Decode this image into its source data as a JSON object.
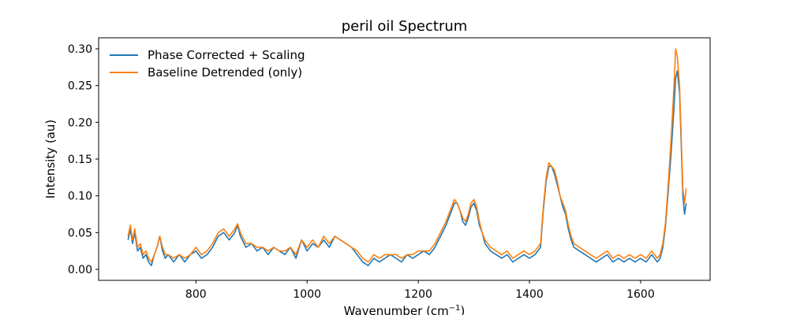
{
  "chart_data": {
    "type": "line",
    "title": "peril oil Spectrum",
    "xlabel": "Wavenumber (cm",
    "xlabel_sup": "−1",
    "xlabel_close": ")",
    "ylabel": "Intensity (au)",
    "xlim": [
      625,
      1725
    ],
    "ylim": [
      -0.015,
      0.315
    ],
    "xticks": [
      800,
      1000,
      1200,
      1400,
      1600
    ],
    "xtick_labels": [
      "800",
      "1000",
      "1200",
      "1400",
      "1600"
    ],
    "yticks": [
      0.0,
      0.05,
      0.1,
      0.15,
      0.2,
      0.25,
      0.3
    ],
    "ytick_labels": [
      "0.00",
      "0.05",
      "0.10",
      "0.15",
      "0.20",
      "0.25",
      "0.30"
    ],
    "grid": false,
    "legend_position": "top-left",
    "series": [
      {
        "name": "Phase Corrected + Scaling",
        "color": "#1f77b4",
        "x": [
          678,
          682,
          686,
          690,
          695,
          700,
          705,
          710,
          715,
          720,
          725,
          730,
          735,
          740,
          745,
          750,
          760,
          770,
          780,
          790,
          800,
          810,
          820,
          830,
          840,
          850,
          860,
          870,
          875,
          880,
          890,
          900,
          910,
          920,
          930,
          940,
          950,
          960,
          970,
          980,
          990,
          1000,
          1010,
          1020,
          1030,
          1040,
          1050,
          1060,
          1070,
          1080,
          1090,
          1100,
          1110,
          1120,
          1130,
          1140,
          1150,
          1160,
          1170,
          1180,
          1190,
          1200,
          1210,
          1220,
          1230,
          1240,
          1250,
          1260,
          1265,
          1270,
          1275,
          1280,
          1285,
          1290,
          1295,
          1300,
          1305,
          1310,
          1315,
          1320,
          1330,
          1340,
          1350,
          1360,
          1370,
          1380,
          1390,
          1400,
          1410,
          1420,
          1425,
          1430,
          1435,
          1440,
          1445,
          1450,
          1455,
          1460,
          1465,
          1470,
          1475,
          1480,
          1490,
          1500,
          1510,
          1520,
          1530,
          1540,
          1550,
          1560,
          1570,
          1580,
          1590,
          1600,
          1610,
          1620,
          1630,
          1635,
          1640,
          1645,
          1650,
          1655,
          1660,
          1663,
          1666,
          1670,
          1673,
          1676,
          1679,
          1682
        ],
        "values": [
          0.04,
          0.055,
          0.035,
          0.05,
          0.025,
          0.03,
          0.015,
          0.02,
          0.01,
          0.005,
          0.02,
          0.03,
          0.045,
          0.025,
          0.015,
          0.02,
          0.01,
          0.02,
          0.01,
          0.02,
          0.025,
          0.015,
          0.02,
          0.03,
          0.045,
          0.05,
          0.04,
          0.05,
          0.06,
          0.045,
          0.03,
          0.035,
          0.025,
          0.03,
          0.02,
          0.03,
          0.025,
          0.02,
          0.03,
          0.015,
          0.04,
          0.025,
          0.035,
          0.03,
          0.04,
          0.03,
          0.045,
          0.04,
          0.035,
          0.03,
          0.02,
          0.01,
          0.005,
          0.015,
          0.01,
          0.015,
          0.02,
          0.015,
          0.01,
          0.02,
          0.015,
          0.02,
          0.025,
          0.02,
          0.03,
          0.045,
          0.06,
          0.08,
          0.09,
          0.09,
          0.08,
          0.065,
          0.06,
          0.07,
          0.085,
          0.09,
          0.08,
          0.06,
          0.05,
          0.035,
          0.025,
          0.02,
          0.015,
          0.02,
          0.01,
          0.015,
          0.02,
          0.015,
          0.02,
          0.03,
          0.08,
          0.12,
          0.14,
          0.14,
          0.13,
          0.115,
          0.1,
          0.085,
          0.075,
          0.055,
          0.04,
          0.03,
          0.025,
          0.02,
          0.015,
          0.01,
          0.015,
          0.02,
          0.01,
          0.015,
          0.01,
          0.015,
          0.01,
          0.015,
          0.01,
          0.02,
          0.01,
          0.015,
          0.03,
          0.06,
          0.11,
          0.16,
          0.22,
          0.26,
          0.27,
          0.24,
          0.17,
          0.1,
          0.075,
          0.09
        ]
      },
      {
        "name": "Baseline Detrended (only)",
        "color": "#ff7f0e",
        "x": [
          678,
          682,
          686,
          690,
          695,
          700,
          705,
          710,
          715,
          720,
          725,
          730,
          735,
          740,
          745,
          750,
          760,
          770,
          780,
          790,
          800,
          810,
          820,
          830,
          840,
          850,
          860,
          870,
          875,
          880,
          890,
          900,
          910,
          920,
          930,
          940,
          950,
          960,
          970,
          980,
          990,
          1000,
          1010,
          1020,
          1030,
          1040,
          1050,
          1060,
          1070,
          1080,
          1090,
          1100,
          1110,
          1120,
          1130,
          1140,
          1150,
          1160,
          1170,
          1180,
          1190,
          1200,
          1210,
          1220,
          1230,
          1240,
          1250,
          1260,
          1265,
          1270,
          1275,
          1280,
          1285,
          1290,
          1295,
          1300,
          1305,
          1310,
          1315,
          1320,
          1330,
          1340,
          1350,
          1360,
          1370,
          1380,
          1390,
          1400,
          1410,
          1420,
          1425,
          1430,
          1435,
          1440,
          1445,
          1450,
          1455,
          1460,
          1465,
          1470,
          1475,
          1480,
          1490,
          1500,
          1510,
          1520,
          1530,
          1540,
          1550,
          1560,
          1570,
          1580,
          1590,
          1600,
          1610,
          1620,
          1630,
          1635,
          1640,
          1645,
          1650,
          1655,
          1660,
          1663,
          1666,
          1670,
          1673,
          1676,
          1679,
          1682
        ],
        "values": [
          0.045,
          0.06,
          0.04,
          0.055,
          0.03,
          0.035,
          0.02,
          0.025,
          0.015,
          0.01,
          0.02,
          0.03,
          0.045,
          0.03,
          0.02,
          0.02,
          0.015,
          0.02,
          0.015,
          0.02,
          0.03,
          0.02,
          0.025,
          0.035,
          0.05,
          0.055,
          0.045,
          0.055,
          0.062,
          0.05,
          0.035,
          0.035,
          0.03,
          0.03,
          0.025,
          0.03,
          0.025,
          0.025,
          0.03,
          0.02,
          0.04,
          0.03,
          0.04,
          0.03,
          0.045,
          0.035,
          0.045,
          0.04,
          0.035,
          0.03,
          0.025,
          0.015,
          0.01,
          0.02,
          0.015,
          0.02,
          0.02,
          0.02,
          0.015,
          0.02,
          0.02,
          0.025,
          0.025,
          0.025,
          0.035,
          0.05,
          0.065,
          0.085,
          0.095,
          0.09,
          0.08,
          0.07,
          0.065,
          0.075,
          0.09,
          0.095,
          0.085,
          0.065,
          0.05,
          0.04,
          0.03,
          0.025,
          0.02,
          0.025,
          0.015,
          0.02,
          0.025,
          0.02,
          0.025,
          0.035,
          0.085,
          0.125,
          0.145,
          0.14,
          0.135,
          0.12,
          0.1,
          0.09,
          0.08,
          0.06,
          0.045,
          0.035,
          0.03,
          0.025,
          0.02,
          0.015,
          0.02,
          0.025,
          0.015,
          0.02,
          0.015,
          0.02,
          0.015,
          0.02,
          0.015,
          0.025,
          0.015,
          0.02,
          0.035,
          0.065,
          0.12,
          0.18,
          0.25,
          0.3,
          0.29,
          0.25,
          0.18,
          0.11,
          0.09,
          0.11
        ]
      }
    ]
  }
}
